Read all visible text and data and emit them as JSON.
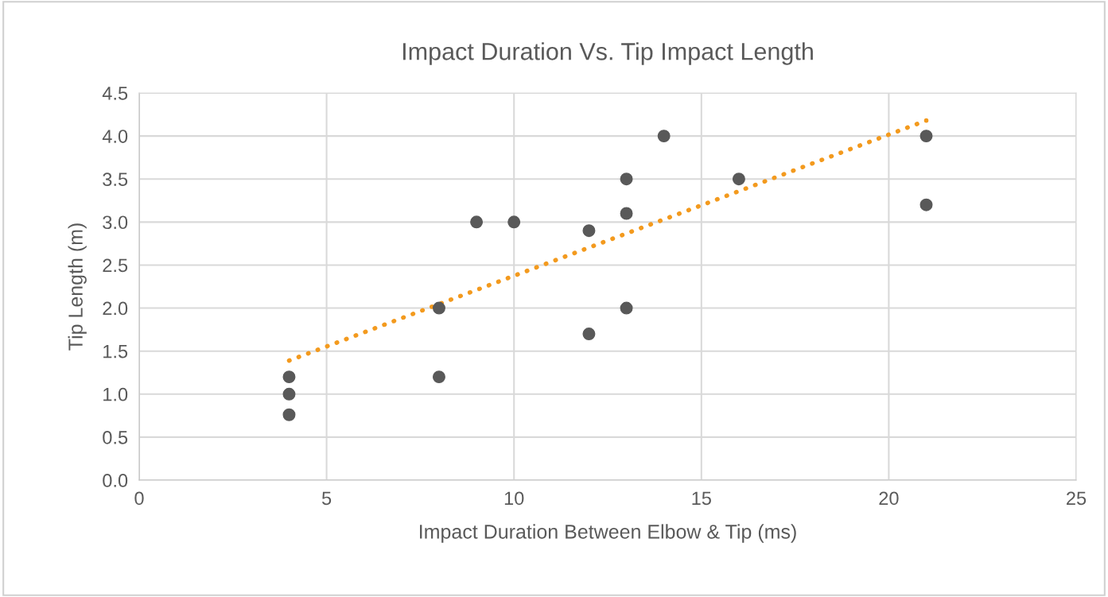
{
  "chart_data": {
    "type": "scatter",
    "title": "Impact Duration Vs. Tip Impact Length",
    "xlabel": "Impact Duration Between Elbow & Tip (ms)",
    "ylabel": "Tip Length (m)",
    "xlim": [
      0,
      25
    ],
    "xticks": [
      0,
      5,
      10,
      15,
      20,
      25
    ],
    "ylim": [
      0,
      4.5
    ],
    "yticks": [
      {
        "value": 0,
        "label": "0.0"
      },
      {
        "value": 0.5,
        "label": "0.5"
      },
      {
        "value": 1,
        "label": "1.0"
      },
      {
        "value": 1.5,
        "label": "1.5"
      },
      {
        "value": 2,
        "label": "2.0"
      },
      {
        "value": 2.5,
        "label": "2.5"
      },
      {
        "value": 3,
        "label": "3.0"
      },
      {
        "value": 3.5,
        "label": "3.5"
      },
      {
        "value": 4,
        "label": "4.0"
      },
      {
        "value": 4.5,
        "label": "4.5"
      }
    ],
    "grid": true,
    "marker": "circle",
    "series": [
      {
        "color": "#595959",
        "x": [
          4,
          4,
          4,
          8,
          8,
          9,
          10,
          12,
          12,
          13,
          13,
          13,
          14,
          16,
          21,
          21
        ],
        "values": [
          1.2,
          1.0,
          0.76,
          2.0,
          1.2,
          3.0,
          3.0,
          2.9,
          1.7,
          3.5,
          3.1,
          2.0,
          4.0,
          3.5,
          4.0,
          3.2
        ]
      },
      {
        "type": "line",
        "color": "#f39a1e",
        "line_style": "dotted",
        "marker": "none",
        "x": [
          4,
          21
        ],
        "values": [
          1.39,
          4.18
        ]
      }
    ]
  }
}
